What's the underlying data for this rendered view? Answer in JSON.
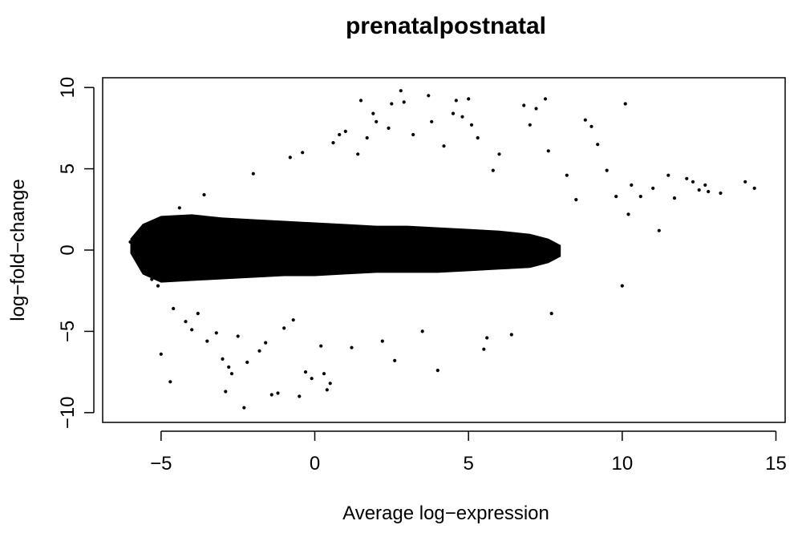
{
  "chart_data": {
    "type": "scatter",
    "title": "prenatalpostnatal",
    "xlabel": "Average log−expression",
    "ylabel": "log−fold−change",
    "xlim": [
      -6.9,
      15.3
    ],
    "ylim": [
      -10.6,
      10.6
    ],
    "xticks": [
      -5,
      0,
      5,
      10,
      15
    ],
    "yticks": [
      -10,
      -5,
      0,
      5,
      10
    ],
    "xtick_labels": [
      "−5",
      "0",
      "5",
      "10",
      "15"
    ],
    "ytick_labels": [
      "−10",
      "−5",
      "0",
      "5",
      "10"
    ],
    "grid": false,
    "legend": "none",
    "point_color": "#000000",
    "series": [
      {
        "values": [
          [
            -6.0,
            0.5
          ],
          [
            -5.9,
            0.6
          ],
          [
            -5.8,
            0.3
          ],
          [
            -5.7,
            0.9
          ],
          [
            -5.6,
            -0.4
          ],
          [
            -5.5,
            -1.2
          ],
          [
            -5.4,
            1.4
          ],
          [
            -5.3,
            -1.8
          ],
          [
            -5.2,
            1.7
          ],
          [
            -5.1,
            -2.2
          ],
          [
            -5.0,
            -6.4
          ],
          [
            -4.7,
            -8.1
          ],
          [
            -4.6,
            -3.6
          ],
          [
            -4.4,
            2.6
          ],
          [
            -4.2,
            -4.4
          ],
          [
            -4.0,
            -4.9
          ],
          [
            -3.8,
            -3.9
          ],
          [
            -3.6,
            3.4
          ],
          [
            -3.5,
            -5.6
          ],
          [
            -3.2,
            -5.1
          ],
          [
            -3.0,
            -6.7
          ],
          [
            -2.9,
            -8.7
          ],
          [
            -2.8,
            -7.2
          ],
          [
            -2.7,
            -7.6
          ],
          [
            -2.5,
            -5.3
          ],
          [
            -2.3,
            -9.7
          ],
          [
            -2.2,
            -6.9
          ],
          [
            -2.0,
            4.7
          ],
          [
            -1.8,
            -6.2
          ],
          [
            -1.6,
            -5.7
          ],
          [
            -1.4,
            -8.9
          ],
          [
            -1.2,
            -8.8
          ],
          [
            -1.0,
            -4.8
          ],
          [
            -0.8,
            5.7
          ],
          [
            -0.7,
            -4.3
          ],
          [
            -0.5,
            -9.0
          ],
          [
            -0.4,
            6.0
          ],
          [
            -0.3,
            -7.5
          ],
          [
            -0.1,
            -7.9
          ],
          [
            0.2,
            -5.9
          ],
          [
            0.3,
            -7.6
          ],
          [
            0.4,
            -8.6
          ],
          [
            0.5,
            -8.2
          ],
          [
            0.6,
            6.6
          ],
          [
            0.8,
            7.1
          ],
          [
            1.0,
            7.3
          ],
          [
            1.2,
            -6.0
          ],
          [
            1.4,
            5.9
          ],
          [
            1.5,
            9.2
          ],
          [
            1.7,
            6.9
          ],
          [
            1.9,
            8.4
          ],
          [
            2.0,
            7.9
          ],
          [
            2.2,
            -5.6
          ],
          [
            2.4,
            7.5
          ],
          [
            2.5,
            9.0
          ],
          [
            2.6,
            -6.8
          ],
          [
            2.8,
            9.8
          ],
          [
            2.9,
            9.1
          ],
          [
            3.2,
            7.1
          ],
          [
            3.5,
            -5.0
          ],
          [
            3.7,
            9.5
          ],
          [
            3.8,
            7.9
          ],
          [
            4.0,
            -7.4
          ],
          [
            4.2,
            6.4
          ],
          [
            4.5,
            8.4
          ],
          [
            4.6,
            9.2
          ],
          [
            4.8,
            8.2
          ],
          [
            5.0,
            9.3
          ],
          [
            5.1,
            7.7
          ],
          [
            5.3,
            6.9
          ],
          [
            5.5,
            -6.1
          ],
          [
            5.6,
            -5.4
          ],
          [
            5.8,
            4.9
          ],
          [
            6.0,
            5.9
          ],
          [
            6.4,
            -5.2
          ],
          [
            6.8,
            8.9
          ],
          [
            7.0,
            7.7
          ],
          [
            7.2,
            8.7
          ],
          [
            7.5,
            9.3
          ],
          [
            7.6,
            6.1
          ],
          [
            7.7,
            -3.9
          ],
          [
            8.2,
            4.6
          ],
          [
            8.5,
            3.1
          ],
          [
            8.8,
            8.0
          ],
          [
            9.0,
            7.6
          ],
          [
            9.2,
            6.5
          ],
          [
            9.5,
            4.9
          ],
          [
            9.8,
            3.3
          ],
          [
            10.0,
            -2.2
          ],
          [
            10.1,
            9.0
          ],
          [
            10.2,
            2.2
          ],
          [
            10.3,
            4.0
          ],
          [
            10.6,
            3.3
          ],
          [
            11.0,
            3.8
          ],
          [
            11.2,
            1.2
          ],
          [
            11.5,
            4.6
          ],
          [
            11.7,
            3.2
          ],
          [
            12.1,
            4.4
          ],
          [
            12.3,
            4.2
          ],
          [
            12.5,
            3.7
          ],
          [
            12.7,
            4.0
          ],
          [
            12.8,
            3.6
          ],
          [
            13.2,
            3.5
          ],
          [
            14.0,
            4.2
          ],
          [
            14.3,
            3.8
          ]
        ]
      }
    ]
  }
}
